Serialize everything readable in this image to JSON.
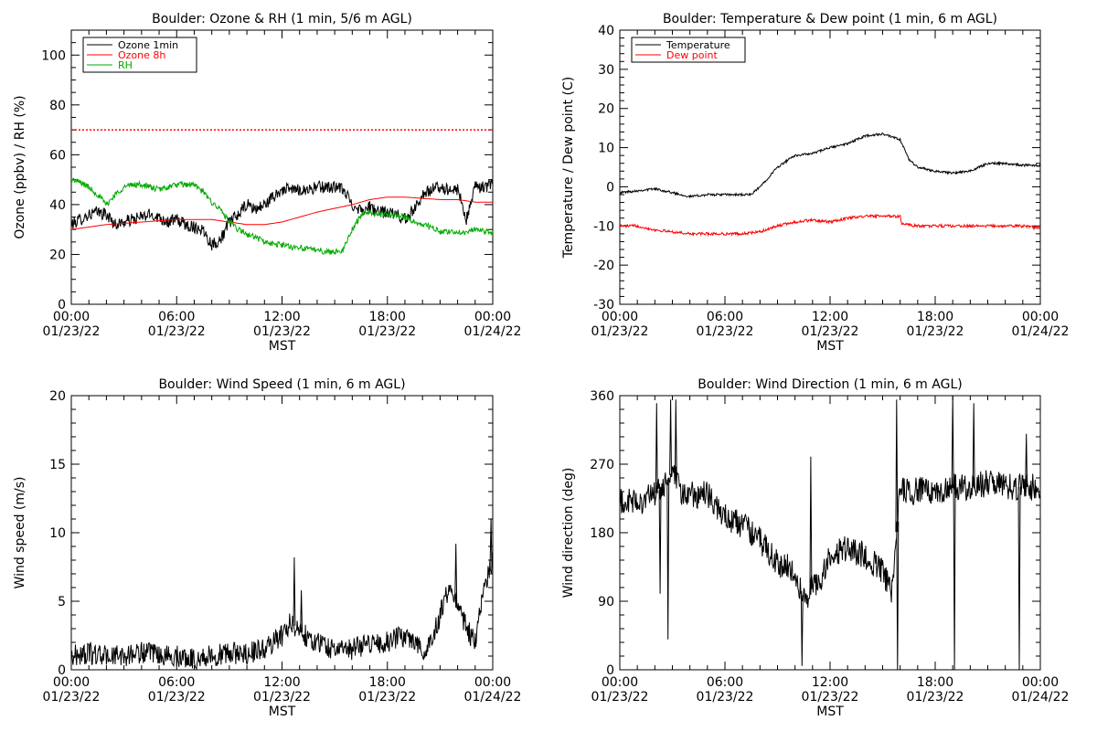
{
  "chart_data": [
    {
      "id": "ozone-rh",
      "type": "line",
      "title": "Boulder: Ozone & RH (1 min, 5/6 m AGL)",
      "xlabel": "MST",
      "ylabel": "Ozone (ppbv) / RH (%)",
      "xlim": [
        "01/23/22 00:00",
        "01/24/22 00:00"
      ],
      "ylim": [
        0,
        110
      ],
      "xticks": [
        {
          "time": "00:00",
          "date": "01/23/22",
          "hour": 0
        },
        {
          "time": "06:00",
          "date": "01/23/22",
          "hour": 6
        },
        {
          "time": "12:00",
          "date": "01/23/22",
          "hour": 12
        },
        {
          "time": "18:00",
          "date": "01/23/22",
          "hour": 18
        },
        {
          "time": "00:00",
          "date": "01/24/22",
          "hour": 24
        }
      ],
      "yticks": [
        0,
        20,
        40,
        60,
        80,
        100
      ],
      "yminor": 5,
      "xminor_hours": 1,
      "legend": "top-left",
      "series": [
        {
          "name": "Ozone 1min",
          "color": "#000000",
          "noise": 2.5,
          "x": [
            0,
            0.5,
            1,
            1.5,
            2,
            2.5,
            3,
            3.5,
            4,
            4.5,
            5,
            5.5,
            6,
            6.5,
            7,
            7.5,
            8,
            8.5,
            9,
            9.5,
            10,
            10.5,
            11,
            11.5,
            12,
            12.5,
            13,
            13.5,
            14,
            14.5,
            15,
            15.5,
            16,
            16.5,
            17,
            17.5,
            18,
            18.5,
            19,
            19.5,
            20,
            20.5,
            21,
            21.5,
            22,
            22.5,
            23,
            23.5,
            24
          ],
          "y": [
            32,
            34,
            36,
            37,
            36,
            32,
            33,
            34,
            35,
            36,
            35,
            33,
            34,
            32,
            31,
            30,
            24,
            26,
            33,
            36,
            40,
            38,
            40,
            43,
            46,
            46,
            46,
            46,
            47,
            47,
            47,
            46,
            40,
            38,
            39,
            37,
            37,
            36,
            34,
            38,
            44,
            46,
            47,
            46,
            46,
            34,
            47,
            47,
            48
          ]
        },
        {
          "name": "Ozone 8h",
          "color": "#ff0000",
          "noise": 0,
          "x": [
            0,
            1,
            2,
            3,
            4,
            5,
            6,
            7,
            8,
            9,
            10,
            11,
            12,
            13,
            14,
            15,
            16,
            17,
            18,
            19,
            20,
            21,
            22,
            23,
            24
          ],
          "y": [
            30,
            31,
            32,
            32.5,
            33,
            33.5,
            34,
            34,
            34,
            33,
            32,
            32,
            33,
            35,
            37,
            38.5,
            40,
            42,
            43,
            43,
            42.5,
            42,
            42,
            41,
            41
          ]
        },
        {
          "name": "RH",
          "color": "#00aa00",
          "noise": 1.2,
          "x": [
            0,
            0.5,
            1,
            1.5,
            2,
            2.5,
            3,
            3.5,
            4,
            4.5,
            5,
            5.5,
            6,
            6.5,
            7,
            7.5,
            8,
            8.5,
            9,
            9.5,
            10,
            10.5,
            11,
            11.5,
            12,
            12.5,
            13,
            13.5,
            14,
            14.5,
            15,
            15.5,
            16,
            16.5,
            17,
            17.5,
            18,
            18.5,
            19,
            19.5,
            20,
            20.5,
            21,
            21.5,
            22,
            22.5,
            23,
            23.5,
            24
          ],
          "y": [
            50,
            49,
            47,
            44,
            40,
            44,
            47,
            48,
            48,
            47,
            46,
            47,
            48,
            48,
            48,
            45,
            41,
            38,
            33,
            30,
            28,
            27,
            25,
            24,
            24,
            23,
            23,
            22,
            22,
            21,
            21,
            22,
            30,
            36,
            37,
            36,
            36,
            36,
            35,
            33,
            32,
            31,
            29,
            29,
            29,
            29,
            30,
            29,
            29
          ]
        }
      ],
      "reference_line": {
        "y": 70,
        "color": "#ff0000",
        "style": "dotted"
      }
    },
    {
      "id": "temp-dewpoint",
      "type": "line",
      "title": "Boulder: Temperature & Dew point (1 min, 6 m AGL)",
      "xlabel": "MST",
      "ylabel": "Temperature / Dew point (C)",
      "xlim": [
        "01/23/22 00:00",
        "01/24/22 00:00"
      ],
      "ylim": [
        -30,
        40
      ],
      "xticks": [
        {
          "time": "00:00",
          "date": "01/23/22",
          "hour": 0
        },
        {
          "time": "06:00",
          "date": "01/23/22",
          "hour": 6
        },
        {
          "time": "12:00",
          "date": "01/23/22",
          "hour": 12
        },
        {
          "time": "18:00",
          "date": "01/23/22",
          "hour": 18
        },
        {
          "time": "00:00",
          "date": "01/24/22",
          "hour": 24
        }
      ],
      "yticks": [
        -30,
        -20,
        -10,
        0,
        10,
        20,
        30,
        40
      ],
      "yminor": 2,
      "xminor_hours": 1,
      "legend": "top-left",
      "series": [
        {
          "name": "Temperature",
          "color": "#000000",
          "noise": 0.3,
          "x": [
            0,
            1,
            2,
            3,
            4,
            5,
            6,
            7,
            7.5,
            8,
            9,
            10,
            11,
            12,
            13,
            14,
            15,
            16,
            16.5,
            17,
            18,
            19,
            20,
            21,
            22,
            23,
            24
          ],
          "y": [
            -1.5,
            -1,
            -0.5,
            -1.5,
            -2.5,
            -2,
            -2,
            -2,
            -2,
            0,
            5,
            8,
            8.5,
            10,
            11,
            13,
            13.5,
            12,
            7,
            5,
            4,
            3.5,
            4,
            6,
            6,
            5.5,
            5.5
          ]
        },
        {
          "name": "Dew point",
          "color": "#ff0000",
          "noise": 0.35,
          "x": [
            0,
            1,
            2,
            3,
            4,
            5,
            6,
            7,
            8,
            9,
            10,
            11,
            12,
            13,
            14,
            15,
            16,
            16.1,
            17,
            18,
            19,
            20,
            21,
            22,
            23,
            24
          ],
          "y": [
            -10,
            -10,
            -11,
            -11.5,
            -12,
            -12,
            -12,
            -12,
            -11.5,
            -10,
            -9,
            -8.5,
            -9,
            -8,
            -7.5,
            -7.5,
            -7.5,
            -9.5,
            -10,
            -10,
            -10,
            -10,
            -10,
            -10,
            -10,
            -10.5
          ]
        }
      ]
    },
    {
      "id": "wind-speed",
      "type": "line",
      "title": "Boulder: Wind Speed (1 min, 6 m AGL)",
      "xlabel": "MST",
      "ylabel": "Wind speed (m/s)",
      "xlim": [
        "01/23/22 00:00",
        "01/24/22 00:00"
      ],
      "ylim": [
        0,
        20
      ],
      "xticks": [
        {
          "time": "00:00",
          "date": "01/23/22",
          "hour": 0
        },
        {
          "time": "06:00",
          "date": "01/23/22",
          "hour": 6
        },
        {
          "time": "12:00",
          "date": "01/23/22",
          "hour": 12
        },
        {
          "time": "18:00",
          "date": "01/23/22",
          "hour": 18
        },
        {
          "time": "00:00",
          "date": "01/24/22",
          "hour": 24
        }
      ],
      "yticks": [
        0,
        5,
        10,
        15,
        20
      ],
      "yminor": 1,
      "xminor_hours": 1,
      "legend": "none",
      "series": [
        {
          "name": "",
          "color": "#000000",
          "noise": 0.8,
          "x": [
            0,
            1,
            2,
            3,
            4,
            5,
            6,
            7,
            8,
            9,
            10,
            11,
            12,
            12.5,
            13,
            14,
            15,
            16,
            17,
            18,
            19,
            19.5,
            20,
            20.5,
            21,
            21.5,
            22,
            22.5,
            23,
            23.5,
            24
          ],
          "y": [
            1,
            1.2,
            1,
            1,
            1.3,
            1,
            1,
            0.8,
            1,
            1.2,
            1.2,
            1.5,
            2.5,
            3.5,
            2.8,
            2,
            1.5,
            1.5,
            2,
            2,
            2.5,
            2.2,
            1.5,
            2,
            4,
            6,
            5,
            3,
            2,
            6,
            8
          ]
        }
      ],
      "spikes": [
        {
          "x": 12.7,
          "y": 8.2
        },
        {
          "x": 13.1,
          "y": 5.8
        },
        {
          "x": 21.9,
          "y": 9.2
        },
        {
          "x": 23.9,
          "y": 11
        }
      ]
    },
    {
      "id": "wind-direction",
      "type": "line",
      "title": "Boulder: Wind Direction (1 min, 6 m AGL)",
      "xlabel": "MST",
      "ylabel": "Wind direction (deg)",
      "xlim": [
        "01/23/22 00:00",
        "01/24/22 00:00"
      ],
      "ylim": [
        0,
        360
      ],
      "xticks": [
        {
          "time": "00:00",
          "date": "01/23/22",
          "hour": 0
        },
        {
          "time": "06:00",
          "date": "01/23/22",
          "hour": 6
        },
        {
          "time": "12:00",
          "date": "01/23/22",
          "hour": 12
        },
        {
          "time": "18:00",
          "date": "01/23/22",
          "hour": 18
        },
        {
          "time": "00:00",
          "date": "01/24/22",
          "hour": 24
        }
      ],
      "yticks": [
        0,
        90,
        180,
        270,
        360
      ],
      "yminor": 18,
      "xminor_hours": 1,
      "legend": "none",
      "series": [
        {
          "name": "",
          "color": "#000000",
          "noise": 18,
          "x": [
            0,
            1,
            2,
            2.5,
            3,
            3.5,
            4,
            5,
            6,
            7,
            8,
            9,
            10,
            10.5,
            11,
            11.5,
            12,
            13,
            14,
            15,
            15.5,
            16,
            17,
            18,
            19,
            20,
            21,
            22,
            23,
            24
          ],
          "y": [
            220,
            220,
            230,
            240,
            260,
            230,
            230,
            230,
            200,
            190,
            170,
            140,
            130,
            90,
            110,
            120,
            150,
            160,
            150,
            130,
            100,
            235,
            235,
            235,
            240,
            240,
            245,
            240,
            240,
            240
          ]
        }
      ],
      "spikes": [
        {
          "x": 2.1,
          "y": 350
        },
        {
          "x": 2.3,
          "y": 100
        },
        {
          "x": 2.75,
          "y": 40
        },
        {
          "x": 2.9,
          "y": 355
        },
        {
          "x": 3.2,
          "y": 355
        },
        {
          "x": 10.4,
          "y": 5
        },
        {
          "x": 10.9,
          "y": 280
        },
        {
          "x": 15.8,
          "y": 355
        },
        {
          "x": 15.85,
          "y": 0
        },
        {
          "x": 19.0,
          "y": 360
        },
        {
          "x": 19.1,
          "y": 0
        },
        {
          "x": 20.2,
          "y": 350
        },
        {
          "x": 22.8,
          "y": 0
        },
        {
          "x": 23.2,
          "y": 310
        }
      ]
    }
  ]
}
